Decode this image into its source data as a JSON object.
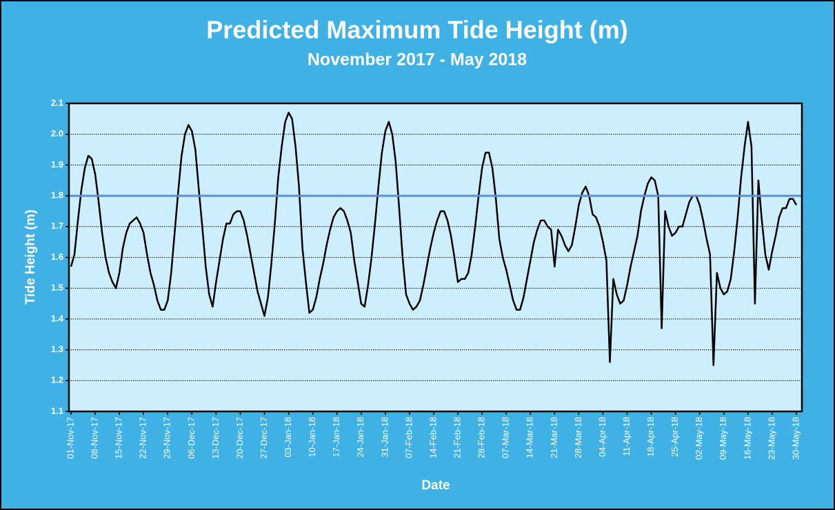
{
  "chart_data": {
    "type": "line",
    "title": "Predicted Maximum Tide Height (m)",
    "subtitle": "November 2017 - May 2018",
    "x_label": "Date",
    "y_label": "Tide Height (m)",
    "categories": [
      "01-Nov-17",
      null,
      null,
      null,
      null,
      null,
      null,
      "08-Nov-17",
      null,
      null,
      null,
      null,
      null,
      null,
      "15-Nov-17",
      null,
      null,
      null,
      null,
      null,
      null,
      "22-Nov-17",
      null,
      null,
      null,
      null,
      null,
      null,
      "29-Nov-17",
      null,
      null,
      null,
      null,
      null,
      null,
      "06-Dec-17",
      null,
      null,
      null,
      null,
      null,
      null,
      "13-Dec-17",
      null,
      null,
      null,
      null,
      null,
      null,
      "20-Dec-17",
      null,
      null,
      null,
      null,
      null,
      null,
      "27-Dec-17",
      null,
      null,
      null,
      null,
      null,
      null,
      "03-Jan-18",
      null,
      null,
      null,
      null,
      null,
      null,
      "10-Jan-18",
      null,
      null,
      null,
      null,
      null,
      null,
      "17-Jan-18",
      null,
      null,
      null,
      null,
      null,
      null,
      "24-Jan-18",
      null,
      null,
      null,
      null,
      null,
      null,
      "31-Jan-18",
      null,
      null,
      null,
      null,
      null,
      null,
      "07-Feb-18",
      null,
      null,
      null,
      null,
      null,
      null,
      "14-Feb-18",
      null,
      null,
      null,
      null,
      null,
      null,
      "21-Feb-18",
      null,
      null,
      null,
      null,
      null,
      null,
      "28-Feb-18",
      null,
      null,
      null,
      null,
      null,
      null,
      "07-Mar-18",
      null,
      null,
      null,
      null,
      null,
      null,
      "14-Mar-18",
      null,
      null,
      null,
      null,
      null,
      null,
      "21-Mar-18",
      null,
      null,
      null,
      null,
      null,
      null,
      "28-Mar-18",
      null,
      null,
      null,
      null,
      null,
      null,
      "04-Apr-18",
      null,
      null,
      null,
      null,
      null,
      null,
      "11-Apr-18",
      null,
      null,
      null,
      null,
      null,
      null,
      "18-Apr-18",
      null,
      null,
      null,
      null,
      null,
      null,
      "25-Apr-18",
      null,
      null,
      null,
      null,
      null,
      null,
      "02-May-18",
      null,
      null,
      null,
      null,
      null,
      null,
      "09-May-18",
      null,
      null,
      null,
      null,
      null,
      null,
      "16-May-18",
      null,
      null,
      null,
      null,
      null,
      null,
      "23-May-18",
      null,
      null,
      null,
      null,
      null,
      null,
      "30-May-18"
    ],
    "values": [
      1.57,
      1.61,
      1.72,
      1.82,
      1.89,
      1.93,
      1.92,
      1.87,
      1.78,
      1.68,
      1.6,
      1.55,
      1.52,
      1.5,
      1.55,
      1.63,
      1.68,
      1.71,
      1.72,
      1.73,
      1.71,
      1.68,
      1.61,
      1.55,
      1.51,
      1.46,
      1.43,
      1.43,
      1.46,
      1.55,
      1.68,
      1.81,
      1.93,
      2.0,
      2.03,
      2.01,
      1.95,
      1.82,
      1.7,
      1.57,
      1.48,
      1.44,
      1.52,
      1.59,
      1.66,
      1.71,
      1.71,
      1.74,
      1.75,
      1.75,
      1.72,
      1.67,
      1.61,
      1.55,
      1.49,
      1.45,
      1.41,
      1.47,
      1.58,
      1.71,
      1.86,
      1.96,
      2.04,
      2.07,
      2.05,
      1.96,
      1.83,
      1.63,
      1.52,
      1.42,
      1.43,
      1.47,
      1.53,
      1.58,
      1.64,
      1.69,
      1.73,
      1.75,
      1.76,
      1.75,
      1.72,
      1.68,
      1.59,
      1.52,
      1.45,
      1.44,
      1.51,
      1.6,
      1.71,
      1.83,
      1.94,
      2.01,
      2.04,
      2.0,
      1.91,
      1.76,
      1.6,
      1.48,
      1.45,
      1.43,
      1.44,
      1.46,
      1.51,
      1.57,
      1.63,
      1.68,
      1.72,
      1.75,
      1.75,
      1.72,
      1.67,
      1.6,
      1.52,
      1.53,
      1.53,
      1.55,
      1.61,
      1.7,
      1.8,
      1.89,
      1.94,
      1.94,
      1.89,
      1.79,
      1.66,
      1.6,
      1.56,
      1.51,
      1.46,
      1.43,
      1.43,
      1.47,
      1.53,
      1.59,
      1.65,
      1.69,
      1.72,
      1.72,
      1.7,
      1.69,
      1.57,
      1.69,
      1.67,
      1.64,
      1.62,
      1.64,
      1.7,
      1.77,
      1.81,
      1.83,
      1.8,
      1.74,
      1.73,
      1.7,
      1.65,
      1.59,
      1.26,
      1.53,
      1.48,
      1.45,
      1.46,
      1.51,
      1.57,
      1.62,
      1.67,
      1.75,
      1.8,
      1.84,
      1.86,
      1.85,
      1.8,
      1.37,
      1.75,
      1.7,
      1.67,
      1.68,
      1.7,
      1.7,
      1.74,
      1.78,
      1.8,
      1.8,
      1.77,
      1.72,
      1.66,
      1.61,
      1.25,
      1.55,
      1.5,
      1.48,
      1.49,
      1.53,
      1.62,
      1.73,
      1.86,
      1.96,
      2.04,
      1.96,
      1.45,
      1.85,
      1.72,
      1.61,
      1.56,
      1.62,
      1.67,
      1.73,
      1.76,
      1.76,
      1.79,
      1.79,
      1.77
    ],
    "color": "#000000",
    "reference_line": {
      "value": 1.8,
      "color": "#5b8fd6"
    },
    "ylim": [
      1.1,
      2.1
    ],
    "yticks": [
      1.1,
      1.2,
      1.3,
      1.4,
      1.5,
      1.6,
      1.7,
      1.8,
      1.9,
      {
        "value": 2,
        "label": "2.0"
      },
      2.1
    ],
    "grid": true
  }
}
